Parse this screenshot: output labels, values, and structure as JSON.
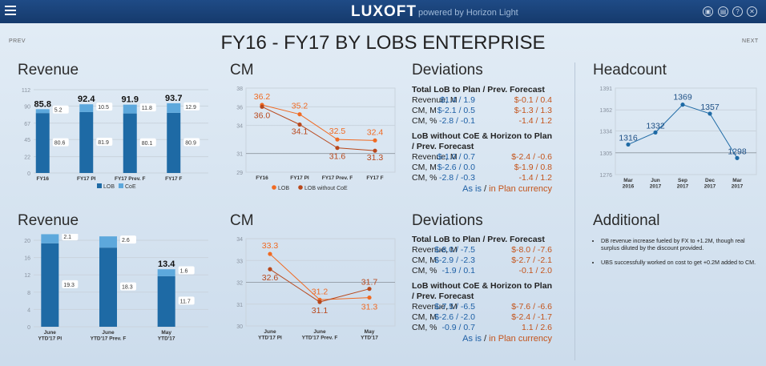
{
  "topbar": {
    "brand": "LUXOFT",
    "powered_by": "powered by Horizon Light",
    "icons": [
      "menu-icon",
      "presentation-icon",
      "print-icon",
      "help-icon",
      "close-icon"
    ]
  },
  "nav": {
    "prev": "PREV",
    "next": "NEXT"
  },
  "page_title": "FY16 - FY17 BY LOBS ENTERPRISE",
  "sections": {
    "revenue_top": "Revenue",
    "cm_top": "CM",
    "deviations_top": "Deviations",
    "headcount": "Headcount",
    "revenue_bottom": "Revenue",
    "cm_bottom": "CM",
    "deviations_bottom": "Deviations",
    "additional": "Additional"
  },
  "deviations_top": {
    "groups": [
      {
        "title": "Total LoB to Plan / Prev. Forecast",
        "rows": [
          {
            "label": "Revenue, M",
            "plan": "$1.4 / 1.9",
            "plan_currency": "$-0.1 / 0.4"
          },
          {
            "label": "CM, M",
            "plan": "$-2.1 / 0.5",
            "plan_currency": "$-1.3 / 1.3"
          },
          {
            "label": "CM, %",
            "plan": "-2.8 / -0.1",
            "plan_currency": "-1.4 / 1.2"
          }
        ]
      },
      {
        "title": "LoB without CoE & Horizon to Plan / Prev. Forecast",
        "rows": [
          {
            "label": "Revenue, M",
            "plan": "$-1.0 / 0.7",
            "plan_currency": "$-2.4 / -0.6"
          },
          {
            "label": "CM, M",
            "plan": "$-2.6 / 0.0",
            "plan_currency": "$-1.9 / 0.8"
          },
          {
            "label": "CM, %",
            "plan": "-2.8 / -0.3",
            "plan_currency": "-1.4 / 1.2"
          }
        ]
      }
    ],
    "footer_as_is": "As is",
    "footer_sep": " / ",
    "footer_plan_currency": "in Plan currency"
  },
  "deviations_bottom": {
    "groups": [
      {
        "title": "Total LoB to Plan / Prev. Forecast",
        "rows": [
          {
            "label": "Revenue, M",
            "plan": "$-8.0 / -7.5",
            "plan_currency": "$-8.0 / -7.6"
          },
          {
            "label": "CM, M",
            "plan": "$-2.9 / -2.3",
            "plan_currency": "$-2.7 / -2.1"
          },
          {
            "label": "CM, %",
            "plan": "-1.9 / 0.1",
            "plan_currency": "-0.1 / 2.0"
          }
        ]
      },
      {
        "title": "LoB without CoE & Horizon to Plan / Prev. Forecast",
        "rows": [
          {
            "label": "Revenue, M",
            "plan": "$-7.5 / -6.5",
            "plan_currency": "$-7.6 / -6.6"
          },
          {
            "label": "CM, M",
            "plan": "$-2.6 / -2.0",
            "plan_currency": "$-2.4 / -1.7"
          },
          {
            "label": "CM, %",
            "plan": "-0.9 / 0.7",
            "plan_currency": "1.1 / 2.6"
          }
        ]
      }
    ],
    "footer_as_is": "As is",
    "footer_sep": " / ",
    "footer_plan_currency": "in Plan currency"
  },
  "additional": {
    "items": [
      "DB revenue increase fueled by FX to +1.2M, though real surplus diluted by the discount provided.",
      "UBS successfully worked on cost to get +0.2M added to CM."
    ]
  },
  "colors": {
    "lob": "#1e6aa5",
    "coe": "#5da8dc",
    "cm_total": "#f06a22",
    "cm_without_coe": "#b8481c",
    "headcount_line": "#1e6aa5"
  },
  "chart_data": [
    {
      "id": "revenue_top",
      "type": "bar",
      "stacked": true,
      "categories": [
        "FY16",
        "FY17 Pl",
        "FY17 Prev. F",
        "FY17 F"
      ],
      "totals": [
        85.8,
        92.4,
        91.9,
        93.7
      ],
      "series": [
        {
          "name": "LOB",
          "values": [
            80.6,
            81.9,
            80.1,
            80.9
          ]
        },
        {
          "name": "CoE",
          "values": [
            5.2,
            10.5,
            11.8,
            12.9
          ]
        }
      ],
      "yticks": [
        0,
        22,
        45,
        67,
        90,
        112
      ],
      "ylim": [
        0,
        112
      ],
      "legend": "bottom"
    },
    {
      "id": "cm_top",
      "type": "line",
      "categories": [
        "FY16",
        "FY17 Pl",
        "FY17 Prev. F",
        "FY17 F"
      ],
      "series": [
        {
          "name": "LOB",
          "values": [
            36.2,
            35.2,
            32.5,
            32.4
          ]
        },
        {
          "name": "LOB without CoE",
          "values": [
            36.0,
            34.1,
            31.6,
            31.3
          ]
        }
      ],
      "yticks": [
        29,
        31,
        34,
        36,
        38
      ],
      "ylim": [
        29,
        38
      ],
      "reference_line": 31,
      "legend": "bottom"
    },
    {
      "id": "headcount",
      "type": "line",
      "categories": [
        "Mar\n2016",
        "Jun\n2017",
        "Sep\n2017",
        "Dec\n2017",
        "Mar\n2017"
      ],
      "series": [
        {
          "values": [
            1316,
            1332,
            1369,
            1357,
            1298
          ]
        }
      ],
      "yticks": [
        1276,
        1305,
        1334,
        1362,
        1391
      ],
      "ylim": [
        1276,
        1391
      ],
      "reference_line": 1305
    },
    {
      "id": "revenue_bottom",
      "type": "bar",
      "stacked": true,
      "categories": [
        "June\nYTD'17 Pl",
        "June\nYTD'17 Prev. F",
        "May\nYTD'17"
      ],
      "totals": [
        21.4,
        20.9,
        13.4
      ],
      "series": [
        {
          "name": "LOB",
          "values": [
            19.3,
            18.3,
            11.7
          ]
        },
        {
          "name": "CoE",
          "values": [
            2.1,
            2.6,
            1.6
          ]
        }
      ],
      "yticks": [
        0,
        4,
        8,
        12,
        16,
        20
      ],
      "ylim": [
        0,
        20
      ]
    },
    {
      "id": "cm_bottom",
      "type": "line",
      "categories": [
        "June\nYTD'17 Pl",
        "June\nYTD'17 Prev. F",
        "May\nYTD'17"
      ],
      "series": [
        {
          "name": "LOB",
          "values": [
            33.3,
            31.2,
            31.3
          ]
        },
        {
          "name": "LOB without CoE",
          "values": [
            32.6,
            31.1,
            31.7
          ]
        }
      ],
      "yticks": [
        30,
        31,
        32,
        33,
        34
      ],
      "ylim": [
        30,
        34
      ],
      "reference_line": 32
    }
  ]
}
